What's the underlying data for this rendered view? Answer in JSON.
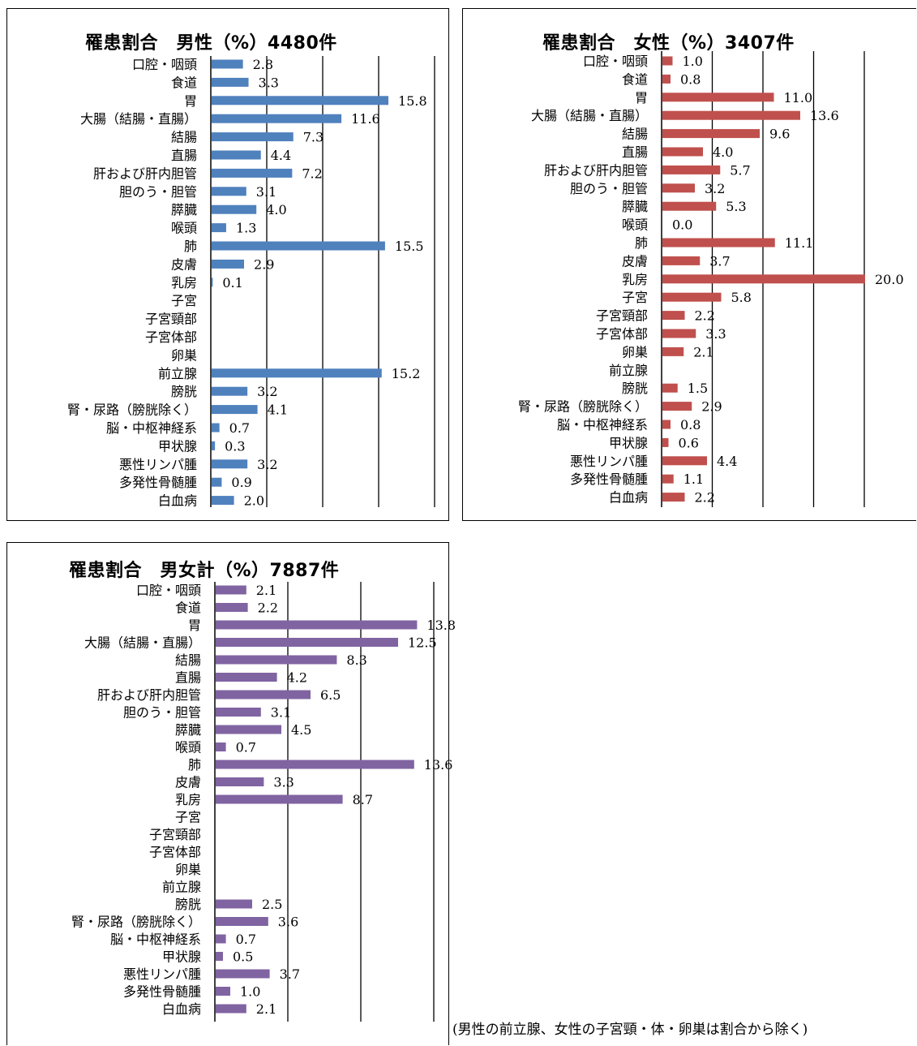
{
  "chart_data": [
    {
      "type": "bar",
      "orientation": "horizontal",
      "title": "罹患割合　男性（%）4480件",
      "color": "#4f81bd",
      "xlim": [
        0,
        20
      ],
      "categories": [
        "口腔・咽頭",
        "食道",
        "胃",
        "大腸（結腸・直腸）",
        "結腸",
        "直腸",
        "肝および肝内胆管",
        "胆のう・胆管",
        "膵臓",
        "喉頭",
        "肺",
        "皮膚",
        "乳房",
        "子宮",
        "子宮頸部",
        "子宮体部",
        "卵巣",
        "前立腺",
        "膀胱",
        "腎・尿路（膀胱除く）",
        "脳・中枢神経系",
        "甲状腺",
        "悪性リンパ腫",
        "多発性骨髄腫",
        "白血病"
      ],
      "values": [
        2.8,
        3.3,
        15.8,
        11.6,
        7.3,
        4.4,
        7.2,
        3.1,
        4.0,
        1.3,
        15.5,
        2.9,
        0.1,
        null,
        null,
        null,
        null,
        15.2,
        3.2,
        4.1,
        0.7,
        0.3,
        3.2,
        0.9,
        2.0
      ],
      "labels": [
        "2.8",
        "3.3",
        "15.8",
        "11.6",
        "7.3",
        "4.4",
        "7.2",
        "3.1",
        "4.0",
        "1.3",
        "15.5",
        "2.9",
        "0.1",
        "",
        "",
        "",
        "",
        "15.2",
        "3.2",
        "4.1",
        "0.7",
        "0.3",
        "3.2",
        "0.9",
        "2.0"
      ]
    },
    {
      "type": "bar",
      "orientation": "horizontal",
      "title": "罹患割合　女性（%）3407件",
      "color": "#c0504d",
      "xlim": [
        0,
        20
      ],
      "categories": [
        "口腔・咽頭",
        "食道",
        "胃",
        "大腸（結腸・直腸）",
        "結腸",
        "直腸",
        "肝および肝内胆管",
        "胆のう・胆管",
        "膵臓",
        "喉頭",
        "肺",
        "皮膚",
        "乳房",
        "子宮",
        "子宮頸部",
        "子宮体部",
        "卵巣",
        "前立腺",
        "膀胱",
        "腎・尿路（膀胱除く）",
        "脳・中枢神経系",
        "甲状腺",
        "悪性リンパ腫",
        "多発性骨髄腫",
        "白血病"
      ],
      "values": [
        1.0,
        0.8,
        11.0,
        13.6,
        9.6,
        4.0,
        5.7,
        3.2,
        5.3,
        0.0,
        11.1,
        3.7,
        20.0,
        5.8,
        2.2,
        3.3,
        2.1,
        null,
        1.5,
        2.9,
        0.8,
        0.6,
        4.4,
        1.1,
        2.2
      ],
      "labels": [
        "1.0",
        "0.8",
        "11.0",
        "13.6",
        "9.6",
        "4.0",
        "5.7",
        "3.2",
        "5.3",
        "0.0",
        "11.1",
        "3.7",
        "20.0",
        "5.8",
        "2.2",
        "3.3",
        "2.1",
        "",
        "1.5",
        "2.9",
        "0.8",
        "0.6",
        "4.4",
        "1.1",
        "2.2"
      ]
    },
    {
      "type": "bar",
      "orientation": "horizontal",
      "title": "罹患割合　男女計（%）7887件",
      "color": "#8064a2",
      "xlim": [
        0,
        15
      ],
      "categories": [
        "口腔・咽頭",
        "食道",
        "胃",
        "大腸（結腸・直腸）",
        "結腸",
        "直腸",
        "肝および肝内胆管",
        "胆のう・胆管",
        "膵臓",
        "喉頭",
        "肺",
        "皮膚",
        "乳房",
        "子宮",
        "子宮頸部",
        "子宮体部",
        "卵巣",
        "前立腺",
        "膀胱",
        "腎・尿路（膀胱除く）",
        "脳・中枢神経系",
        "甲状腺",
        "悪性リンパ腫",
        "多発性骨髄腫",
        "白血病"
      ],
      "values": [
        2.1,
        2.2,
        13.8,
        12.5,
        8.3,
        4.2,
        6.5,
        3.1,
        4.5,
        0.7,
        13.6,
        3.3,
        8.7,
        null,
        null,
        null,
        null,
        null,
        2.5,
        3.6,
        0.7,
        0.5,
        3.7,
        1.0,
        2.1
      ],
      "labels": [
        "2.1",
        "2.2",
        "13.8",
        "12.5",
        "8.3",
        "4.2",
        "6.5",
        "3.1",
        "4.5",
        "0.7",
        "13.6",
        "3.3",
        "8.7",
        "",
        "",
        "",
        "",
        "",
        "2.5",
        "3.6",
        "0.7",
        "0.5",
        "3.7",
        "1.0",
        "2.1"
      ]
    }
  ],
  "note": "(男性の前立腺、女性の子宮頸・体・卵巣は割合から除く)"
}
